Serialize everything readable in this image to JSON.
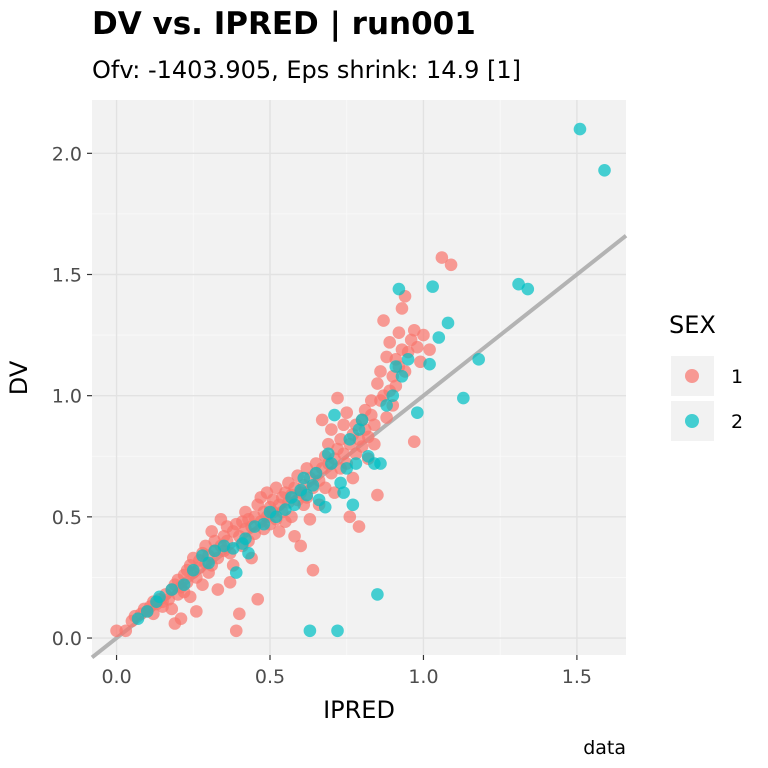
{
  "chart_data": {
    "type": "scatter",
    "title": "DV vs. IPRED | run001",
    "subtitle": "Ofv: -1403.905, Eps shrink: 14.9 [1]",
    "xlabel": "IPRED",
    "ylabel": "DV",
    "caption": "data",
    "xlim": [
      -0.08,
      1.66
    ],
    "ylim": [
      -0.07,
      2.22
    ],
    "x_ticks": [
      0.0,
      0.5,
      1.0,
      1.5
    ],
    "x_tick_labels": [
      "0.0",
      "0.5",
      "1.0",
      "1.5"
    ],
    "y_ticks": [
      0.0,
      0.5,
      1.0,
      1.5,
      2.0
    ],
    "y_tick_labels": [
      "0.0",
      "0.5",
      "1.0",
      "1.5",
      "2.0"
    ],
    "grid": true,
    "panel_background": "#f2f2f2",
    "reference_line": {
      "type": "identity",
      "slope": 1,
      "intercept": 0,
      "color": "#b3b3b3"
    },
    "legend": {
      "title": "SEX",
      "placement": "right",
      "entries": [
        {
          "label": "1",
          "color": "#F8766D"
        },
        {
          "label": "2",
          "color": "#00BFC4"
        }
      ]
    },
    "series": [
      {
        "name": "1",
        "color": "#F8766D",
        "points": [
          [
            0.0,
            0.03
          ],
          [
            0.03,
            0.03
          ],
          [
            0.05,
            0.07
          ],
          [
            0.06,
            0.09
          ],
          [
            0.08,
            0.1
          ],
          [
            0.09,
            0.12
          ],
          [
            0.1,
            0.11
          ],
          [
            0.11,
            0.13
          ],
          [
            0.12,
            0.15
          ],
          [
            0.12,
            0.1
          ],
          [
            0.13,
            0.14
          ],
          [
            0.14,
            0.16
          ],
          [
            0.15,
            0.15
          ],
          [
            0.15,
            0.13
          ],
          [
            0.16,
            0.18
          ],
          [
            0.17,
            0.16
          ],
          [
            0.18,
            0.2
          ],
          [
            0.18,
            0.12
          ],
          [
            0.19,
            0.22
          ],
          [
            0.19,
            0.06
          ],
          [
            0.2,
            0.18
          ],
          [
            0.2,
            0.24
          ],
          [
            0.21,
            0.21
          ],
          [
            0.21,
            0.08
          ],
          [
            0.22,
            0.26
          ],
          [
            0.22,
            0.19
          ],
          [
            0.23,
            0.28
          ],
          [
            0.23,
            0.23
          ],
          [
            0.24,
            0.3
          ],
          [
            0.24,
            0.17
          ],
          [
            0.25,
            0.27
          ],
          [
            0.25,
            0.33
          ],
          [
            0.26,
            0.25
          ],
          [
            0.26,
            0.11
          ],
          [
            0.27,
            0.32
          ],
          [
            0.27,
            0.29
          ],
          [
            0.28,
            0.35
          ],
          [
            0.28,
            0.22
          ],
          [
            0.29,
            0.31
          ],
          [
            0.29,
            0.38
          ],
          [
            0.3,
            0.34
          ],
          [
            0.3,
            0.27
          ],
          [
            0.31,
            0.44
          ],
          [
            0.31,
            0.3
          ],
          [
            0.32,
            0.36
          ],
          [
            0.32,
            0.4
          ],
          [
            0.33,
            0.33
          ],
          [
            0.33,
            0.2
          ],
          [
            0.34,
            0.38
          ],
          [
            0.34,
            0.49
          ],
          [
            0.35,
            0.42
          ],
          [
            0.35,
            0.36
          ],
          [
            0.36,
            0.4
          ],
          [
            0.36,
            0.46
          ],
          [
            0.37,
            0.35
          ],
          [
            0.37,
            0.23
          ],
          [
            0.38,
            0.44
          ],
          [
            0.38,
            0.3
          ],
          [
            0.39,
            0.47
          ],
          [
            0.39,
            0.03
          ],
          [
            0.4,
            0.42
          ],
          [
            0.4,
            0.1
          ],
          [
            0.41,
            0.48
          ],
          [
            0.41,
            0.38
          ],
          [
            0.42,
            0.45
          ],
          [
            0.42,
            0.52
          ],
          [
            0.43,
            0.4
          ],
          [
            0.43,
            0.49
          ],
          [
            0.44,
            0.46
          ],
          [
            0.44,
            0.33
          ],
          [
            0.45,
            0.5
          ],
          [
            0.45,
            0.43
          ],
          [
            0.46,
            0.55
          ],
          [
            0.46,
            0.16
          ],
          [
            0.47,
            0.48
          ],
          [
            0.47,
            0.58
          ],
          [
            0.48,
            0.52
          ],
          [
            0.48,
            0.45
          ],
          [
            0.49,
            0.5
          ],
          [
            0.49,
            0.6
          ],
          [
            0.5,
            0.54
          ],
          [
            0.5,
            0.47
          ],
          [
            0.51,
            0.52
          ],
          [
            0.51,
            0.57
          ],
          [
            0.52,
            0.49
          ],
          [
            0.52,
            0.62
          ],
          [
            0.53,
            0.55
          ],
          [
            0.53,
            0.44
          ],
          [
            0.54,
            0.58
          ],
          [
            0.54,
            0.52
          ],
          [
            0.55,
            0.6
          ],
          [
            0.55,
            0.48
          ],
          [
            0.56,
            0.56
          ],
          [
            0.56,
            0.64
          ],
          [
            0.57,
            0.5
          ],
          [
            0.57,
            0.59
          ],
          [
            0.58,
            0.62
          ],
          [
            0.58,
            0.42
          ],
          [
            0.59,
            0.57
          ],
          [
            0.59,
            0.67
          ],
          [
            0.6,
            0.6
          ],
          [
            0.6,
            0.38
          ],
          [
            0.61,
            0.63
          ],
          [
            0.61,
            0.55
          ],
          [
            0.62,
            0.7
          ],
          [
            0.62,
            0.58
          ],
          [
            0.63,
            0.66
          ],
          [
            0.63,
            0.49
          ],
          [
            0.64,
            0.62
          ],
          [
            0.64,
            0.28
          ],
          [
            0.65,
            0.68
          ],
          [
            0.65,
            0.72
          ],
          [
            0.66,
            0.65
          ],
          [
            0.66,
            0.55
          ],
          [
            0.67,
            0.7
          ],
          [
            0.67,
            0.9
          ],
          [
            0.68,
            0.75
          ],
          [
            0.68,
            0.62
          ],
          [
            0.69,
            0.72
          ],
          [
            0.69,
            0.8
          ],
          [
            0.7,
            0.68
          ],
          [
            0.7,
            0.86
          ],
          [
            0.71,
            0.74
          ],
          [
            0.71,
            0.6
          ],
          [
            0.72,
            0.78
          ],
          [
            0.72,
            0.99
          ],
          [
            0.73,
            0.82
          ],
          [
            0.73,
            0.7
          ],
          [
            0.74,
            0.76
          ],
          [
            0.74,
            0.88
          ],
          [
            0.75,
            0.72
          ],
          [
            0.75,
            0.93
          ],
          [
            0.76,
            0.8
          ],
          [
            0.76,
            0.5
          ],
          [
            0.77,
            0.84
          ],
          [
            0.77,
            0.66
          ],
          [
            0.78,
            0.88
          ],
          [
            0.78,
            0.76
          ],
          [
            0.79,
            0.82
          ],
          [
            0.79,
            0.46
          ],
          [
            0.8,
            0.9
          ],
          [
            0.8,
            0.79
          ],
          [
            0.81,
            0.86
          ],
          [
            0.81,
            0.94
          ],
          [
            0.82,
            0.83
          ],
          [
            0.82,
            0.74
          ],
          [
            0.83,
            0.92
          ],
          [
            0.83,
            0.98
          ],
          [
            0.84,
            0.88
          ],
          [
            0.84,
            0.8
          ],
          [
            0.85,
            1.05
          ],
          [
            0.85,
            0.59
          ],
          [
            0.86,
            0.98
          ],
          [
            0.86,
            1.1
          ],
          [
            0.87,
            1.0
          ],
          [
            0.87,
            1.31
          ],
          [
            0.88,
            1.16
          ],
          [
            0.88,
            0.91
          ],
          [
            0.89,
            1.22
          ],
          [
            0.89,
            1.02
          ],
          [
            0.9,
            1.08
          ],
          [
            0.9,
            0.96
          ],
          [
            0.91,
            1.15
          ],
          [
            0.91,
            1.04
          ],
          [
            0.92,
            1.26
          ],
          [
            0.92,
            1.12
          ],
          [
            0.93,
            1.19
          ],
          [
            0.93,
            1.36
          ],
          [
            0.94,
            1.41
          ],
          [
            0.94,
            1.1
          ],
          [
            0.95,
            1.18
          ],
          [
            0.96,
            1.23
          ],
          [
            0.97,
            1.27
          ],
          [
            0.97,
            0.81
          ],
          [
            0.98,
            1.2
          ],
          [
            0.99,
            1.14
          ],
          [
            1.0,
            1.25
          ],
          [
            1.02,
            1.19
          ],
          [
            1.06,
            1.57
          ],
          [
            1.09,
            1.54
          ]
        ]
      },
      {
        "name": "2",
        "color": "#00BFC4",
        "points": [
          [
            0.07,
            0.08
          ],
          [
            0.1,
            0.11
          ],
          [
            0.13,
            0.15
          ],
          [
            0.14,
            0.17
          ],
          [
            0.18,
            0.2
          ],
          [
            0.22,
            0.22
          ],
          [
            0.25,
            0.28
          ],
          [
            0.28,
            0.34
          ],
          [
            0.3,
            0.31
          ],
          [
            0.32,
            0.36
          ],
          [
            0.35,
            0.38
          ],
          [
            0.38,
            0.37
          ],
          [
            0.39,
            0.27
          ],
          [
            0.41,
            0.39
          ],
          [
            0.42,
            0.41
          ],
          [
            0.43,
            0.35
          ],
          [
            0.45,
            0.46
          ],
          [
            0.48,
            0.47
          ],
          [
            0.5,
            0.52
          ],
          [
            0.52,
            0.5
          ],
          [
            0.55,
            0.53
          ],
          [
            0.57,
            0.58
          ],
          [
            0.58,
            0.55
          ],
          [
            0.6,
            0.61
          ],
          [
            0.61,
            0.66
          ],
          [
            0.62,
            0.59
          ],
          [
            0.63,
            0.03
          ],
          [
            0.64,
            0.63
          ],
          [
            0.65,
            0.68
          ],
          [
            0.66,
            0.57
          ],
          [
            0.68,
            0.54
          ],
          [
            0.69,
            0.76
          ],
          [
            0.7,
            0.72
          ],
          [
            0.71,
            0.92
          ],
          [
            0.72,
            0.03
          ],
          [
            0.73,
            0.64
          ],
          [
            0.74,
            0.6
          ],
          [
            0.75,
            0.7
          ],
          [
            0.76,
            0.82
          ],
          [
            0.77,
            0.55
          ],
          [
            0.78,
            0.72
          ],
          [
            0.79,
            0.86
          ],
          [
            0.8,
            0.9
          ],
          [
            0.82,
            0.75
          ],
          [
            0.84,
            0.72
          ],
          [
            0.85,
            0.18
          ],
          [
            0.86,
            0.72
          ],
          [
            0.88,
            0.96
          ],
          [
            0.9,
            1.0
          ],
          [
            0.91,
            1.12
          ],
          [
            0.92,
            1.44
          ],
          [
            0.93,
            1.08
          ],
          [
            0.95,
            1.15
          ],
          [
            0.98,
            0.93
          ],
          [
            1.02,
            1.13
          ],
          [
            1.03,
            1.45
          ],
          [
            1.05,
            1.24
          ],
          [
            1.08,
            1.3
          ],
          [
            1.13,
            0.99
          ],
          [
            1.18,
            1.15
          ],
          [
            1.31,
            1.46
          ],
          [
            1.34,
            1.44
          ],
          [
            1.51,
            2.1
          ],
          [
            1.59,
            1.93
          ]
        ]
      }
    ]
  }
}
